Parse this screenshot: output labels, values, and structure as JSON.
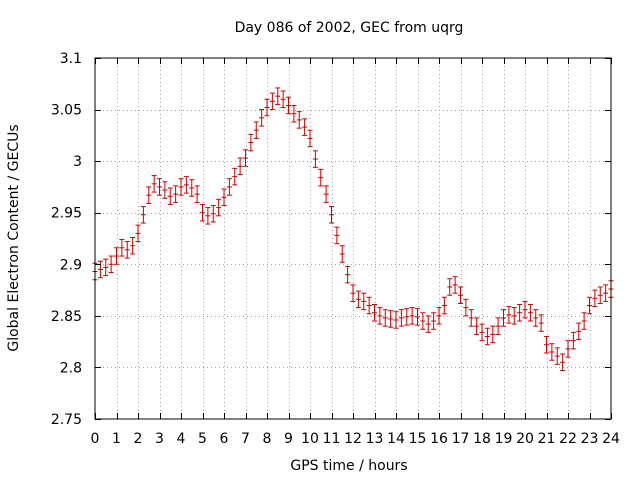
{
  "chart_data": {
    "type": "scatter",
    "title": "Day 086 of 2002, GEC from uqrg",
    "xlabel": "GPS time / hours",
    "ylabel": "Global Electron Content / GECUs",
    "xlim": [
      0,
      24
    ],
    "ylim": [
      2.75,
      3.1
    ],
    "xticks": [
      "0",
      "1",
      "2",
      "3",
      "4",
      "5",
      "6",
      "7",
      "8",
      "9",
      "10",
      "11",
      "12",
      "13",
      "14",
      "15",
      "16",
      "17",
      "18",
      "19",
      "20",
      "21",
      "22",
      "23",
      "24"
    ],
    "yticks": [
      "2.75",
      "2.8",
      "2.85",
      "2.9",
      "2.95",
      "3",
      "3.05",
      "3.1"
    ],
    "grid": true,
    "color": "#cc0000",
    "error": 0.008,
    "series": [
      {
        "x": [
          0.0,
          0.25,
          0.5,
          0.75,
          1.0,
          1.25,
          1.5,
          1.75,
          2.0,
          2.25,
          2.5,
          2.75,
          3.0,
          3.25,
          3.5,
          3.75,
          4.0,
          4.25,
          4.5,
          4.75,
          5.0,
          5.25,
          5.5,
          5.75,
          6.0,
          6.25,
          6.5,
          6.75,
          7.0,
          7.25,
          7.5,
          7.75,
          8.0,
          8.25,
          8.5,
          8.75,
          9.0,
          9.25,
          9.5,
          9.75,
          10.0,
          10.25,
          10.5,
          10.75,
          11.0,
          11.25,
          11.5,
          11.75,
          12.0,
          12.25,
          12.5,
          12.75,
          13.0,
          13.25,
          13.5,
          13.75,
          14.0,
          14.25,
          14.5,
          14.75,
          15.0,
          15.25,
          15.5,
          15.75,
          16.0,
          16.25,
          16.5,
          16.75,
          17.0,
          17.25,
          17.5,
          17.75,
          18.0,
          18.25,
          18.5,
          18.75,
          19.0,
          19.25,
          19.5,
          19.75,
          20.0,
          20.25,
          20.5,
          20.75,
          21.0,
          21.25,
          21.5,
          21.75,
          22.0,
          22.25,
          22.5,
          22.75,
          23.0,
          23.25,
          23.5,
          23.75,
          24.0
        ],
        "y": [
          2.893,
          2.895,
          2.897,
          2.9,
          2.908,
          2.916,
          2.914,
          2.918,
          2.93,
          2.948,
          2.967,
          2.978,
          2.975,
          2.972,
          2.966,
          2.968,
          2.975,
          2.977,
          2.974,
          2.968,
          2.95,
          2.947,
          2.949,
          2.955,
          2.965,
          2.975,
          2.985,
          2.995,
          3.003,
          3.018,
          3.03,
          3.042,
          3.052,
          3.058,
          3.063,
          3.06,
          3.054,
          3.046,
          3.04,
          3.033,
          3.022,
          3.002,
          2.984,
          2.968,
          2.948,
          2.928,
          2.91,
          2.89,
          2.872,
          2.866,
          2.864,
          2.86,
          2.853,
          2.85,
          2.848,
          2.847,
          2.846,
          2.848,
          2.849,
          2.85,
          2.849,
          2.845,
          2.842,
          2.845,
          2.85,
          2.86,
          2.878,
          2.88,
          2.87,
          2.858,
          2.848,
          2.84,
          2.834,
          2.83,
          2.832,
          2.84,
          2.848,
          2.851,
          2.85,
          2.853,
          2.856,
          2.853,
          2.848,
          2.843,
          2.822,
          2.815,
          2.811,
          2.805,
          2.818,
          2.826,
          2.835,
          2.845,
          2.86,
          2.867,
          2.87,
          2.872,
          2.876
        ]
      }
    ]
  }
}
